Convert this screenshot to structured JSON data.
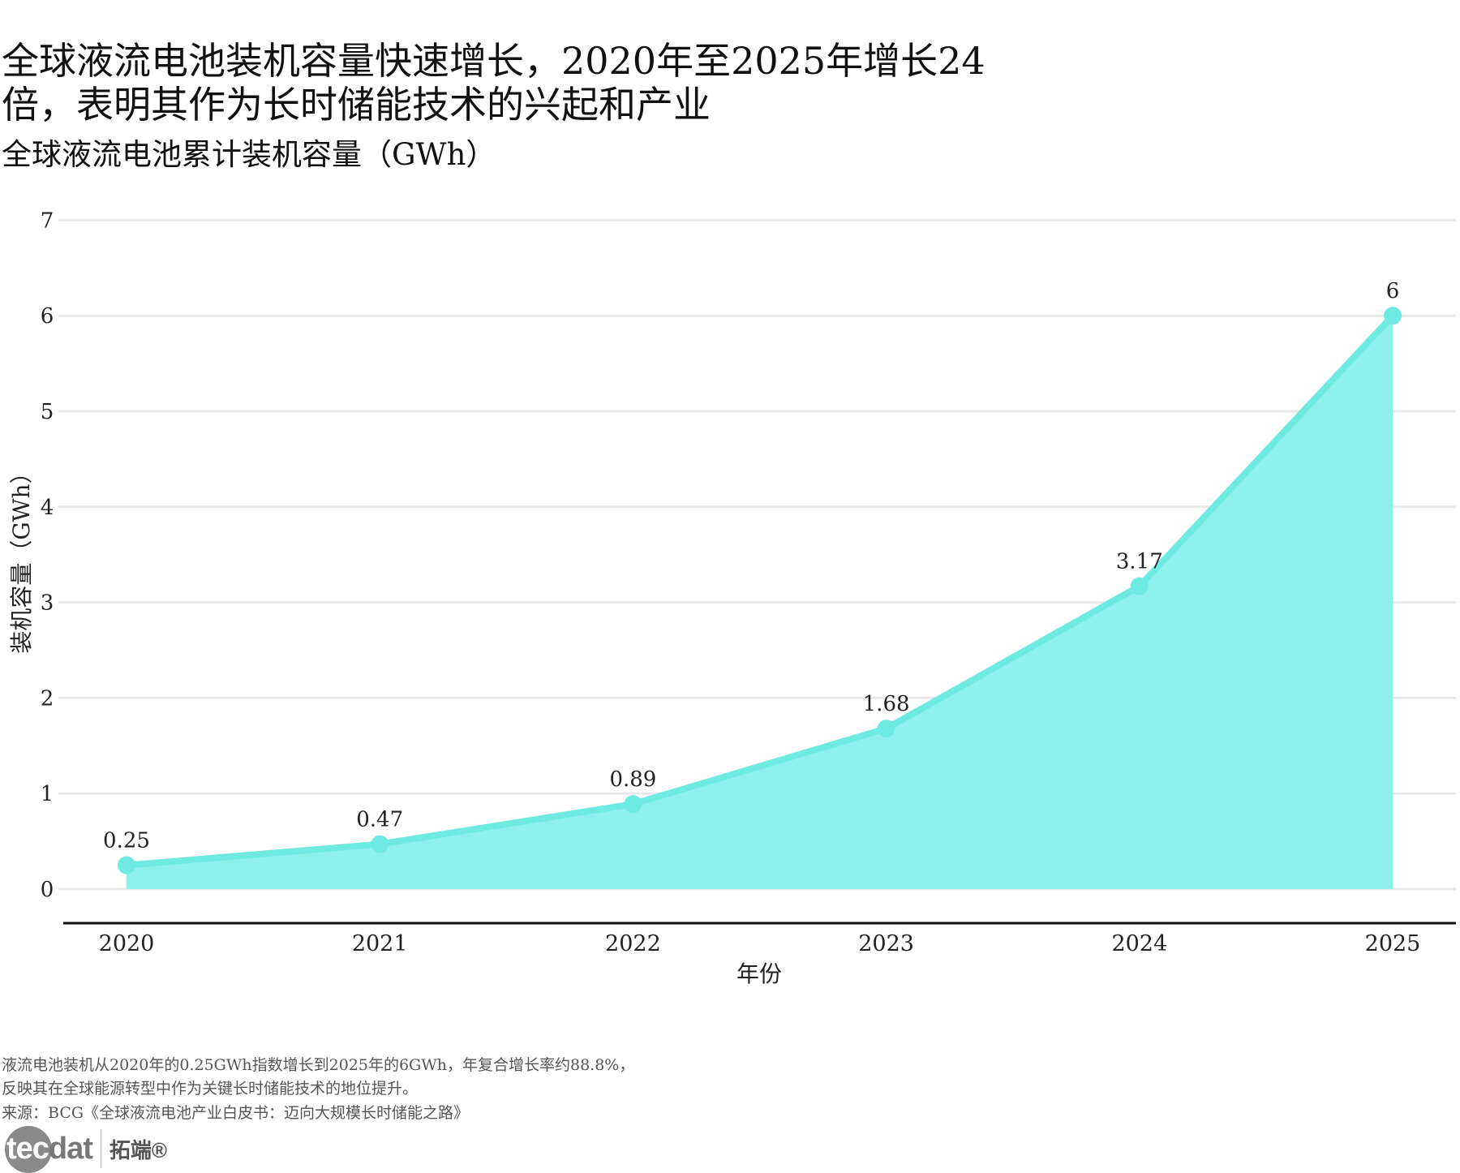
{
  "title_lines": [
    "全球液流电池装机容量快速增长，2020年至2025年增长24",
    "倍，表明其作为长时储能技术的兴起和产业"
  ],
  "subtitle": "全球液流电池累计装机容量（GWh）",
  "chart_data": {
    "type": "area",
    "x": [
      "2020",
      "2021",
      "2022",
      "2023",
      "2024",
      "2025"
    ],
    "values": [
      0.25,
      0.47,
      0.89,
      1.68,
      3.17,
      6
    ],
    "data_labels": [
      "0.25",
      "0.47",
      "0.89",
      "1.68",
      "3.17",
      "6"
    ],
    "xlabel": "年份",
    "ylabel": "装机容量（GWh）",
    "ylim": [
      0,
      7
    ],
    "yticks": [
      "0",
      "1",
      "2",
      "3",
      "4",
      "5",
      "6",
      "7"
    ],
    "grid": true,
    "colors": {
      "line": "#6eeae1",
      "fill": "#8ef0ea"
    }
  },
  "notes": [
    "液流电池装机从2020年的0.25GWh指数增长到2025年的6GWh，年复合增长率约88.8%，",
    "反映其在全球能源转型中作为关键长时储能技术的地位提升。",
    "来源：BCG《全球液流电池产业白皮书：迈向大规模长时储能之路》"
  ],
  "logo": {
    "text_a": "tec",
    "text_b": "dat",
    "text_cn": "拓端®"
  }
}
